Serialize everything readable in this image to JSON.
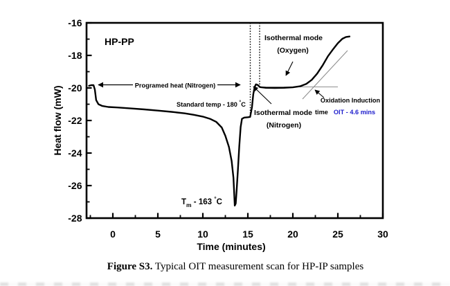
{
  "figure": {
    "corner_label": "HP-PP",
    "caption_bold": "Figure S3.",
    "caption_rest": " Typical OIT measurement scan for HP-IP samples"
  },
  "colors": {
    "accent_blue": "#1e1ecc",
    "curve_black": "#000000",
    "tangent_gray": "#8f8f8f"
  },
  "axes": {
    "x": {
      "label": "Time (minutes)",
      "major_ticks": [
        0,
        5,
        10,
        15,
        20,
        25,
        30
      ],
      "minor_ticks": [
        -2.5,
        2.5,
        7.5,
        12.5,
        17.5,
        22.5,
        27.5
      ]
    },
    "y": {
      "label": "Heat flow (mW)",
      "major_ticks": [
        -16,
        -18,
        -20,
        -22,
        -24,
        -26,
        -28
      ],
      "minor_ticks": [
        -17,
        -19,
        -21,
        -23,
        -25,
        -27
      ]
    }
  },
  "annotations": {
    "programed_heat": "Programed heat (Nitrogen)",
    "standard_temp_text": "Standard temp - 180 ",
    "standard_temp_deg": "°",
    "standard_temp_unit": "C",
    "iso_oxygen_line1": "Isothermal mode",
    "iso_oxygen_line2": "(Oxygen)",
    "iso_nitrogen_line1": "Isothermal mode",
    "iso_nitrogen_line2": "(Nitrogen)",
    "oxidation_line1": "Oxidation Induction",
    "oxidation_time": "time",
    "oxidation_oit": "OIT - 4.6 mins",
    "tm_base": "T",
    "tm_sub": "m",
    "tm_rest": " - 163 ",
    "tm_deg": "°",
    "tm_unit": "C"
  },
  "chart_data": {
    "type": "line",
    "title": "",
    "xlabel": "Time (minutes)",
    "ylabel": "Heat flow (mW)",
    "xlim": [
      -2.9,
      30
    ],
    "ylim": [
      -28,
      -16
    ],
    "grid": false,
    "legend": "none",
    "key_values": {
      "sample": "HP-PP",
      "melting_peak_label_c": 163,
      "melting_peak_time_min": 13.55,
      "melting_peak_heatflow_mw": -27.2,
      "standard_temp_c": 180,
      "oit_minutes": 4.6,
      "gas_switch_window_min": [
        15.3,
        16.2
      ]
    },
    "series": [
      {
        "name": "HP-PP DSC heat flow",
        "points": [
          [
            -2.65,
            -19.87
          ],
          [
            -2.4,
            -19.83
          ],
          [
            -2.15,
            -19.83
          ],
          [
            -2.0,
            -20.1
          ],
          [
            -1.85,
            -20.75
          ],
          [
            -1.6,
            -21.0
          ],
          [
            -1.2,
            -21.1
          ],
          [
            -0.5,
            -21.17
          ],
          [
            0.5,
            -21.2
          ],
          [
            2,
            -21.26
          ],
          [
            3.5,
            -21.32
          ],
          [
            5,
            -21.39
          ],
          [
            6.5,
            -21.47
          ],
          [
            8,
            -21.56
          ],
          [
            9,
            -21.65
          ],
          [
            10,
            -21.76
          ],
          [
            10.8,
            -21.9
          ],
          [
            11.5,
            -22.09
          ],
          [
            12.1,
            -22.43
          ],
          [
            12.5,
            -22.94
          ],
          [
            12.9,
            -23.63
          ],
          [
            13.2,
            -24.49
          ],
          [
            13.4,
            -25.52
          ],
          [
            13.48,
            -26.4
          ],
          [
            13.55,
            -27.23
          ],
          [
            13.65,
            -27.1
          ],
          [
            13.75,
            -26.3
          ],
          [
            13.9,
            -25.0
          ],
          [
            14.05,
            -23.6
          ],
          [
            14.2,
            -22.4
          ],
          [
            14.35,
            -21.9
          ],
          [
            14.6,
            -21.82
          ],
          [
            15.0,
            -21.8
          ],
          [
            15.25,
            -21.78
          ],
          [
            15.45,
            -21.2
          ],
          [
            15.6,
            -20.4
          ],
          [
            15.75,
            -19.95
          ],
          [
            15.9,
            -19.78
          ],
          [
            16.1,
            -19.82
          ],
          [
            16.35,
            -19.95
          ],
          [
            17,
            -19.99
          ],
          [
            18,
            -20.0
          ],
          [
            19,
            -19.99
          ],
          [
            20,
            -19.96
          ],
          [
            20.8,
            -19.9
          ],
          [
            21.5,
            -19.75
          ],
          [
            22.1,
            -19.5
          ],
          [
            22.7,
            -19.12
          ],
          [
            23.3,
            -18.62
          ],
          [
            23.9,
            -18.05
          ],
          [
            24.5,
            -17.6
          ],
          [
            25.0,
            -17.25
          ],
          [
            25.5,
            -16.98
          ],
          [
            25.9,
            -16.87
          ],
          [
            26.3,
            -16.84
          ]
        ]
      }
    ]
  }
}
